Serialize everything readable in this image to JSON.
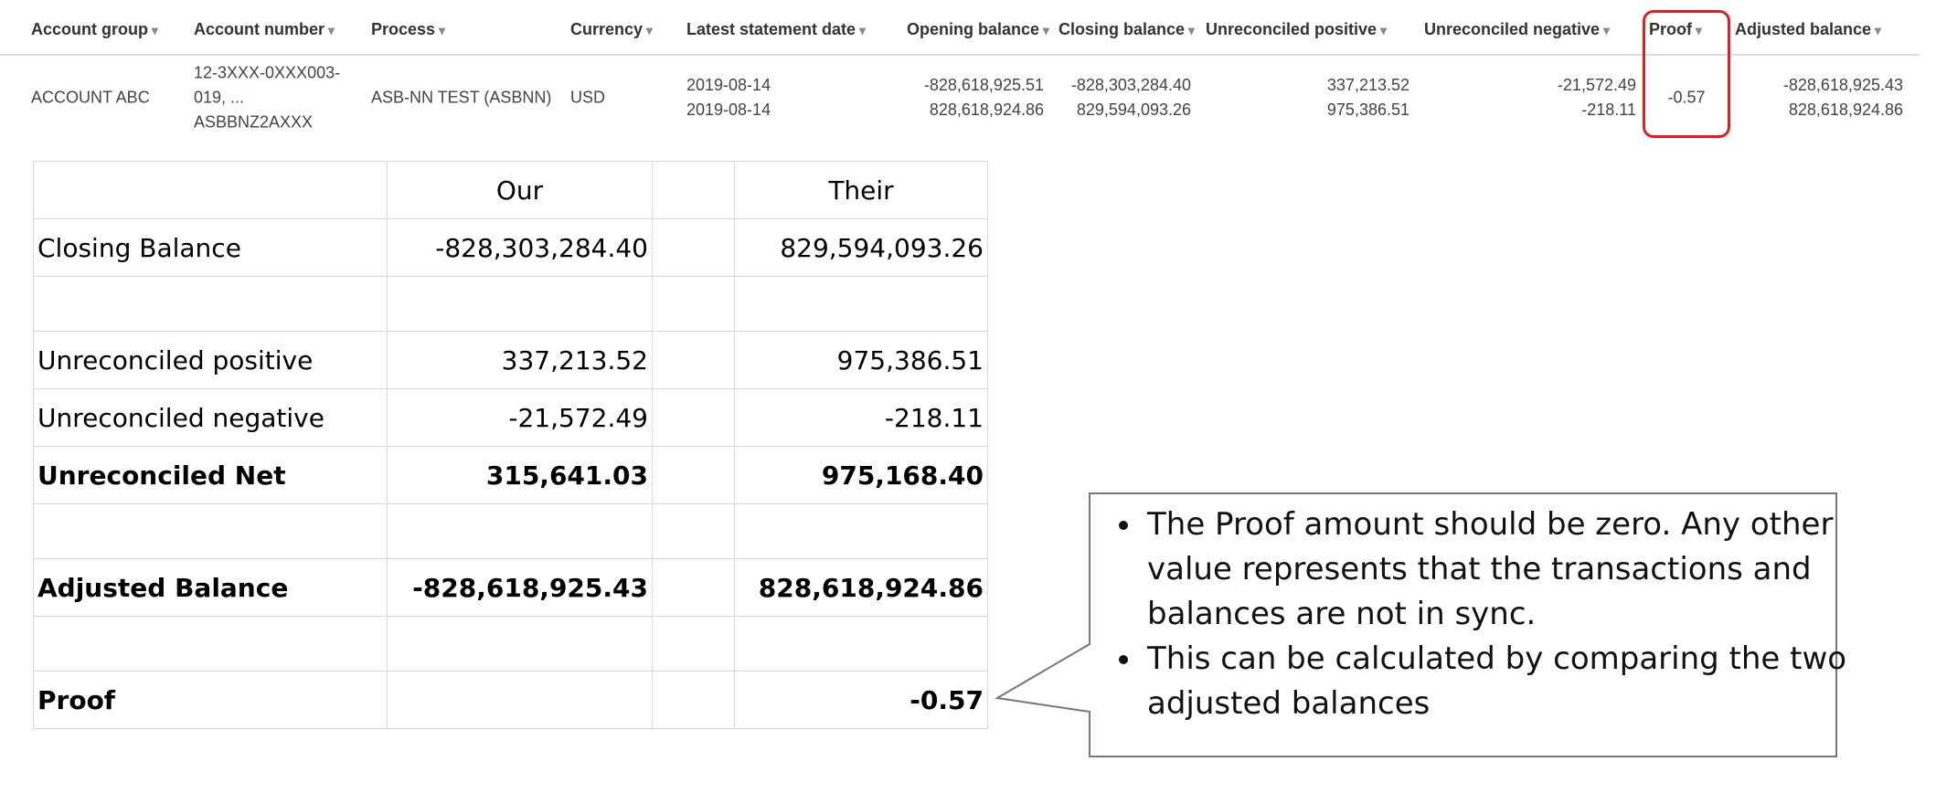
{
  "grid": {
    "headers": [
      "Account group",
      "Account number",
      "Process",
      "Currency",
      "Latest statement date",
      "Opening balance",
      "Closing balance",
      "Unreconciled positive",
      "Unreconciled negative",
      "Proof",
      "Adjusted balance"
    ],
    "cells": [
      [
        "ACCOUNT ABC"
      ],
      [
        "12-3XXX-0XXX003-019, ...",
        "ASBBNZ2AXXX"
      ],
      [
        "ASB-NN TEST (ASBNN)"
      ],
      [
        "USD"
      ],
      [
        "2019-08-14",
        "2019-08-14"
      ],
      [
        "-828,618,925.51",
        "828,618,924.86"
      ],
      [
        "-828,303,284.40",
        "829,594,093.26"
      ],
      [
        "337,213.52",
        "975,386.51"
      ],
      [
        "-21,572.49",
        "-218.11"
      ],
      [
        "-0.57"
      ],
      [
        "-828,618,925.43",
        "828,618,924.86"
      ]
    ]
  },
  "table": {
    "headers": [
      "Our",
      "Their"
    ],
    "rows": [
      {
        "label": "Closing Balance",
        "our": "-828,303,284.40",
        "their": "829,594,093.26"
      },
      null,
      {
        "label": "Unreconciled positive",
        "our": "337,213.52",
        "their": "975,386.51"
      },
      {
        "label": "Unreconciled negative",
        "our": "-21,572.49",
        "their": "-218.11"
      },
      {
        "label": "Unreconciled Net",
        "our": "315,641.03",
        "their": "975,168.40",
        "bold": true
      },
      null,
      {
        "label": "Adjusted Balance",
        "our": "-828,618,925.43",
        "their": "828,618,924.86",
        "bold": true
      },
      null,
      {
        "label": "Proof",
        "their": "-0.57",
        "bold": true
      }
    ]
  },
  "callout": {
    "bullets": [
      "The Proof amount should be zero. Any other value represents that the transactions and balances are not in sync.",
      "This can be calculated by comparing the two adjusted balances"
    ]
  }
}
